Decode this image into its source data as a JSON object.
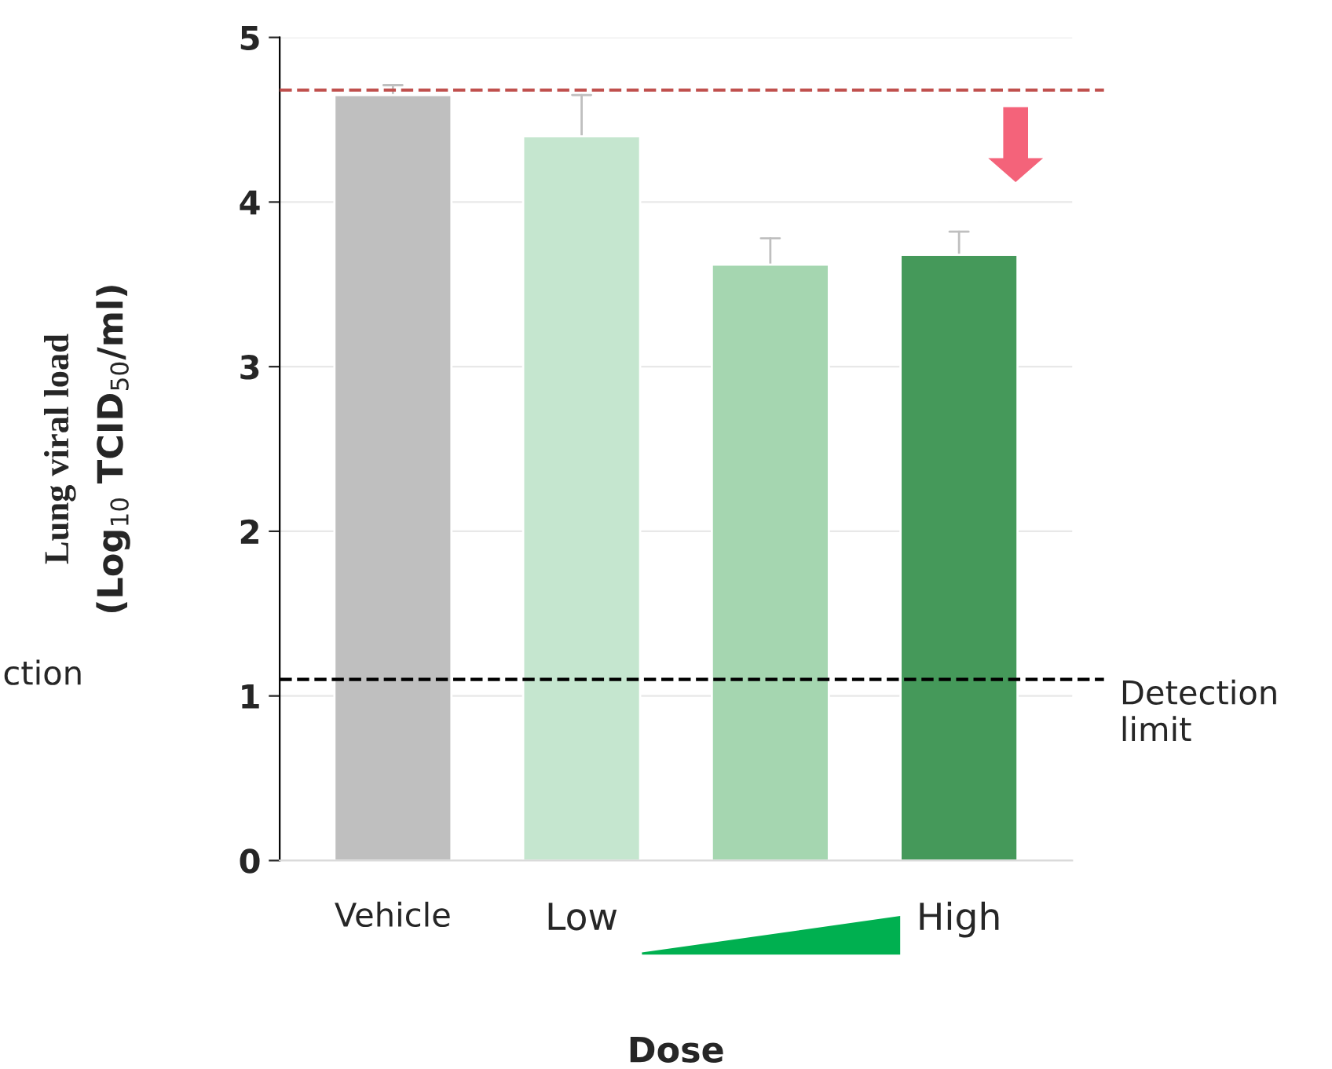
{
  "chart_data": {
    "type": "bar",
    "xlabel": "Dose",
    "ylabel": "Lung viral load\n(Log$_{10}$ TCID$_{50}$/ml)",
    "categories": [
      "Vehicle",
      "Low",
      null,
      "High"
    ],
    "values": [
      4.65,
      4.4,
      3.62,
      3.68
    ],
    "colors": [
      "#bfbfbf",
      "#c5e6cf",
      "#a5d6b0",
      "#45995a"
    ],
    "errors": [
      [
        4.65,
        4.71
      ],
      [
        4.4,
        4.65
      ],
      [
        3.62,
        3.78
      ],
      [
        3.68,
        3.82
      ]
    ],
    "ylim": [
      0,
      5
    ],
    "yticks": [
      0,
      1,
      2,
      3,
      4,
      5
    ],
    "grid": "y",
    "ref_lines": [
      {
        "axis": "y",
        "value": 4.68,
        "color": "#c0504d",
        "line_style": "dashed"
      },
      {
        "axis": "y",
        "value": 1.1,
        "label": "Detection\nlimit",
        "color": "#000000",
        "line_style": "dashed"
      }
    ],
    "annotations": [
      "ction"
    ]
  }
}
